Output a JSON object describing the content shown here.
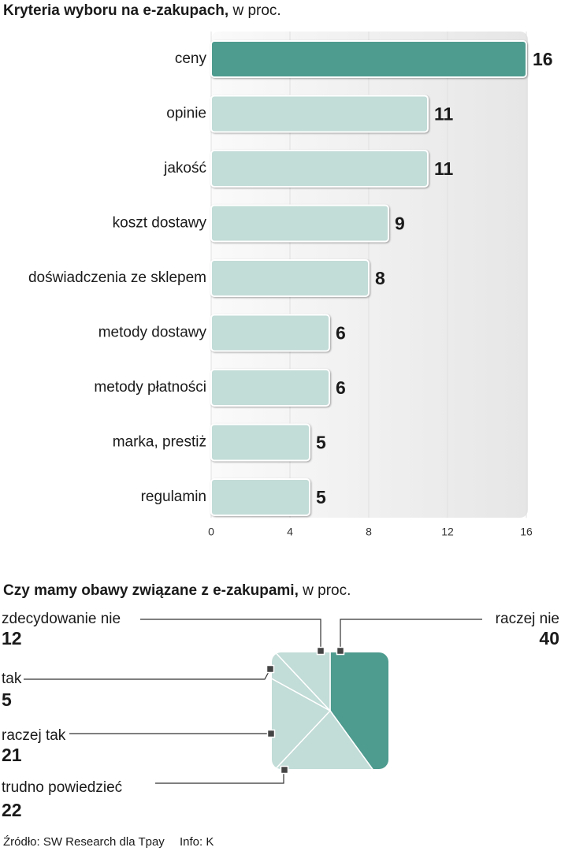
{
  "chart_data": [
    {
      "type": "bar",
      "title": "Kryteria wyboru na e-zakupach,",
      "subtitle": "w proc.",
      "categories": [
        "ceny",
        "opinie",
        "jakość",
        "koszt dostawy",
        "doświadczenia ze sklepem",
        "metody dostawy",
        "metody płatności",
        "marka, prestiż",
        "regulamin"
      ],
      "values": [
        16,
        11,
        11,
        9,
        8,
        6,
        6,
        5,
        5
      ],
      "colors": [
        "#4e9b8f",
        "#c2dcd7",
        "#c2dcd7",
        "#c2dcd7",
        "#c2dcd7",
        "#c2dcd7",
        "#c2dcd7",
        "#c2dcd7",
        "#c2dcd7"
      ],
      "xlim": [
        0,
        16
      ],
      "xticks": [
        0,
        4,
        8,
        12,
        16
      ]
    },
    {
      "type": "pie",
      "title": "Czy mamy obawy związane z e-zakupami,",
      "subtitle": "w proc.",
      "categories": [
        "raczej nie",
        "trudno powiedzieć",
        "raczej tak",
        "tak",
        "zdecydowanie nie"
      ],
      "values": [
        40,
        22,
        21,
        5,
        12
      ],
      "colors": [
        "#4e9b8f",
        "#c2dcd7",
        "#c2dcd7",
        "#c2dcd7",
        "#c2dcd7"
      ]
    }
  ],
  "source": "Źródło: SW Research dla Tpay",
  "credit": "Info: K"
}
